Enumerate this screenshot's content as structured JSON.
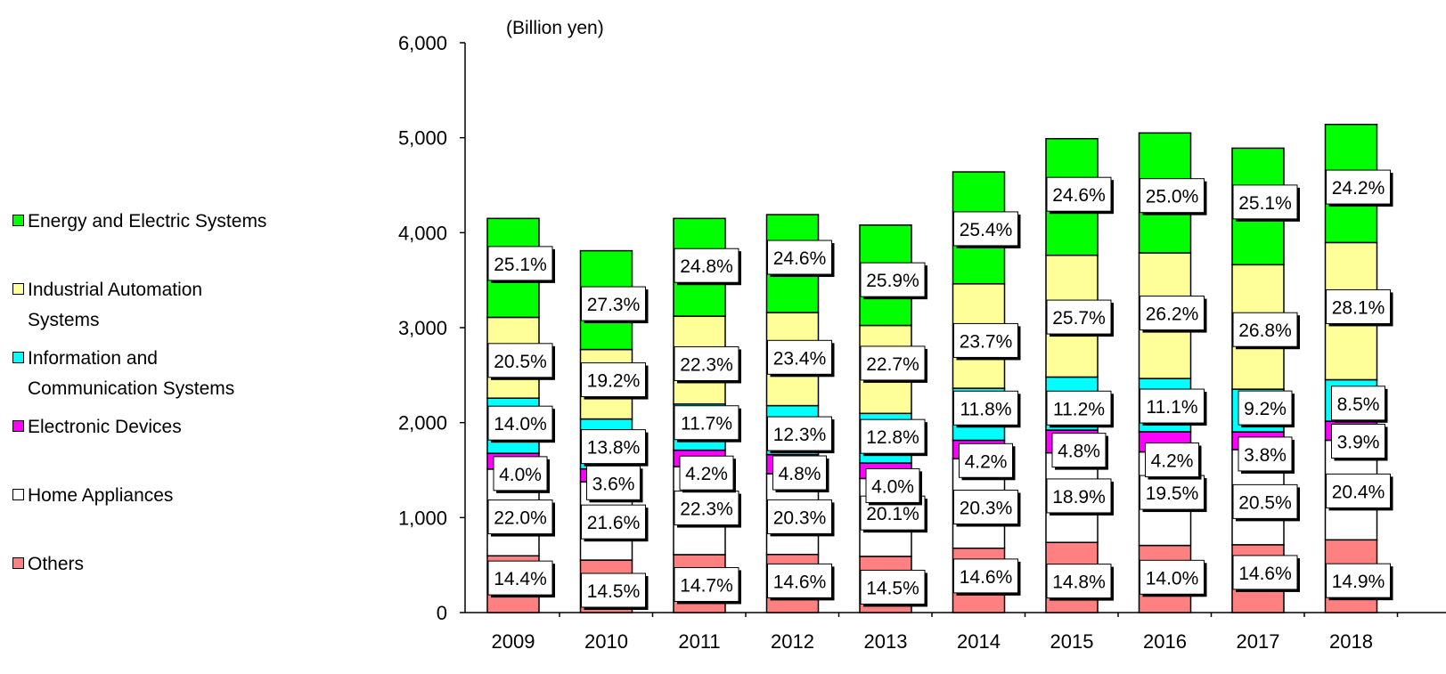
{
  "chart_data": {
    "type": "bar",
    "stacked": true,
    "unit_label": "(Billion yen)",
    "categories": [
      "2009",
      "2010",
      "2011",
      "2012",
      "2013",
      "2014",
      "2015",
      "2016",
      "2017",
      "2018"
    ],
    "totals": [
      4150,
      3810,
      4150,
      4190,
      4080,
      4640,
      4990,
      5050,
      4890,
      5140
    ],
    "ylim": [
      0,
      6000
    ],
    "yticks": [
      0,
      1000,
      2000,
      3000,
      4000,
      5000,
      6000
    ],
    "ytick_labels": [
      "0",
      "1,000",
      "2,000",
      "3,000",
      "4,000",
      "5,000",
      "6,000"
    ],
    "legend_position": "left",
    "series": [
      {
        "name": "Others",
        "color": "#ff8080",
        "shares": [
          14.4,
          14.5,
          14.7,
          14.6,
          14.5,
          14.6,
          14.8,
          14.0,
          14.6,
          14.9
        ],
        "labels": [
          "14.4%",
          "14.5%",
          "14.7%",
          "14.6%",
          "14.5%",
          "14.6%",
          "14.8%",
          "14.0%",
          "14.6%",
          "14.9%"
        ]
      },
      {
        "name": "Home Appliances",
        "color": "#ffffff",
        "shares": [
          22.0,
          21.6,
          22.3,
          20.3,
          20.1,
          20.3,
          18.9,
          19.5,
          20.5,
          20.4
        ],
        "labels": [
          "22.0%",
          "21.6%",
          "22.3%",
          "20.3%",
          "20.1%",
          "20.3%",
          "18.9%",
          "19.5%",
          "20.5%",
          "20.4%"
        ]
      },
      {
        "name": "Electronic Devices",
        "color": "#ff00ff",
        "shares": [
          4.0,
          3.6,
          4.2,
          4.8,
          4.0,
          4.2,
          4.8,
          4.2,
          3.8,
          3.9
        ],
        "labels": [
          "4.0%",
          "3.6%",
          "4.2%",
          "4.8%",
          "4.0%",
          "4.2%",
          "4.8%",
          "4.2%",
          "3.8%",
          "3.9%"
        ]
      },
      {
        "name": "Information and\nCommunication Systems",
        "color": "#00ffff",
        "shares": [
          14.0,
          13.8,
          11.7,
          12.3,
          12.8,
          11.8,
          11.2,
          11.1,
          9.2,
          8.5
        ],
        "labels": [
          "14.0%",
          "13.8%",
          "11.7%",
          "12.3%",
          "12.8%",
          "11.8%",
          "11.2%",
          "11.1%",
          "9.2%",
          "8.5%"
        ]
      },
      {
        "name": "Industrial Automation\nSystems",
        "color": "#ffff99",
        "shares": [
          20.5,
          19.2,
          22.3,
          23.4,
          22.7,
          23.7,
          25.7,
          26.2,
          26.8,
          28.1
        ],
        "labels": [
          "20.5%",
          "19.2%",
          "22.3%",
          "23.4%",
          "22.7%",
          "23.7%",
          "25.7%",
          "26.2%",
          "26.8%",
          "28.1%"
        ]
      },
      {
        "name": "Energy and Electric Systems",
        "color": "#00ff00",
        "shares": [
          25.1,
          27.3,
          24.8,
          24.6,
          25.9,
          25.4,
          24.6,
          25.0,
          25.1,
          24.2
        ],
        "labels": [
          "25.1%",
          "27.3%",
          "24.8%",
          "24.6%",
          "25.9%",
          "25.4%",
          "24.6%",
          "25.0%",
          "25.1%",
          "24.2%"
        ]
      }
    ],
    "legend_order": [
      5,
      4,
      3,
      2,
      1,
      0
    ]
  }
}
